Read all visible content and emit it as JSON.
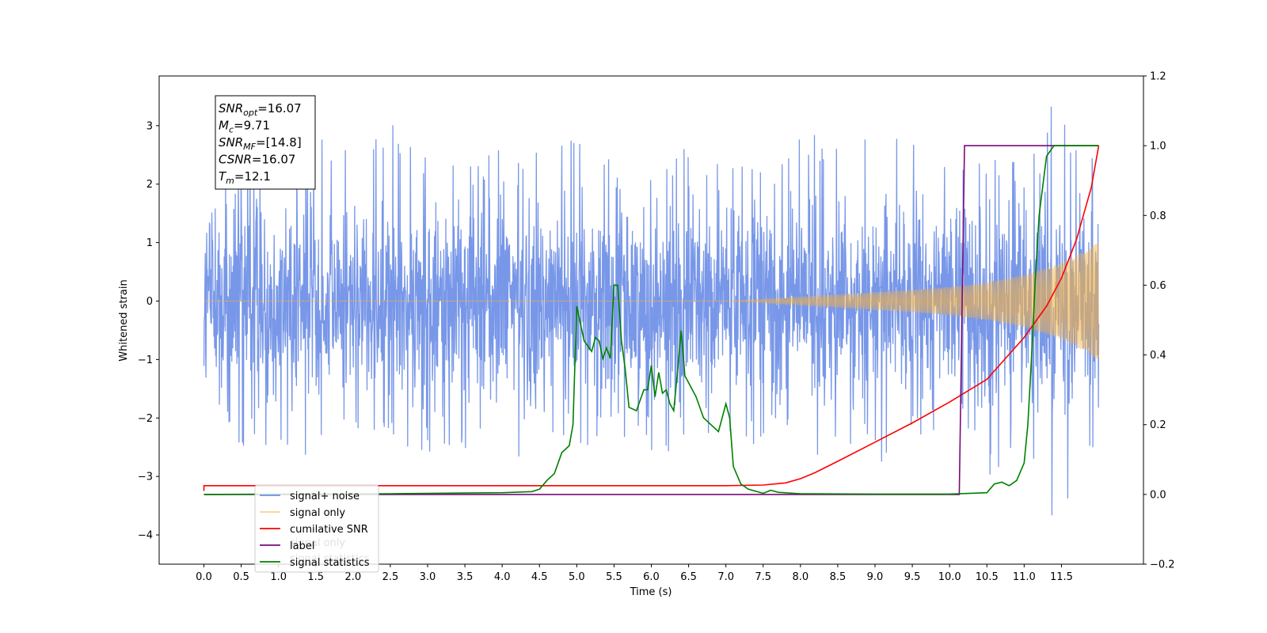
{
  "chart_data": {
    "type": "line",
    "xlabel": "Time (s)",
    "ylabel": "Whitened strain",
    "xlim": [
      -0.6,
      12.6
    ],
    "ylim": [
      -4.5,
      3.85
    ],
    "y2lim": [
      -0.2,
      1.2
    ],
    "x_ticks": [
      0.0,
      0.5,
      1.0,
      1.5,
      2.0,
      2.5,
      3.0,
      3.5,
      4.0,
      4.5,
      5.0,
      5.5,
      6.0,
      6.5,
      7.0,
      7.5,
      8.0,
      8.5,
      9.0,
      9.5,
      10.0,
      10.5,
      11.0,
      11.5
    ],
    "x_tick_labels": [
      "0.0",
      "0.5",
      "1.0",
      "1.5",
      "2.0",
      "2.5",
      "3.0",
      "3.5",
      "4.0",
      "4.5",
      "5.0",
      "5.5",
      "6.0",
      "6.5",
      "7.0",
      "7.5",
      "8.0",
      "8.5",
      "9.0",
      "9.5",
      "10.0",
      "10.5",
      "11.0",
      "11.5"
    ],
    "y_ticks": [
      -4,
      -3,
      -2,
      -1,
      0,
      1,
      2,
      3
    ],
    "y_tick_labels": [
      "−4",
      "−3",
      "−2",
      "−1",
      "0",
      "1",
      "2",
      "3"
    ],
    "y2_ticks": [
      -0.2,
      0.0,
      0.2,
      0.4,
      0.6,
      0.8,
      1.0,
      1.2
    ],
    "y2_tick_labels": [
      "−0.2",
      "0.0",
      "0.2",
      "0.4",
      "0.6",
      "0.8",
      "1.0",
      "1.2"
    ],
    "grid": false,
    "legend_position": "lower-left",
    "duration": 12.0,
    "noise_envelope": {
      "x": [
        0.0,
        0.5,
        1.0,
        1.5,
        2.0,
        2.5,
        3.0,
        3.5,
        4.0,
        4.5,
        5.0,
        5.5,
        6.0,
        6.5,
        7.0,
        7.5,
        8.0,
        8.5,
        9.0,
        9.5,
        10.0,
        10.5,
        11.0,
        11.5,
        12.0
      ],
      "max": [
        1.8,
        2.5,
        2.9,
        2.7,
        3.2,
        3.4,
        2.7,
        2.5,
        2.6,
        2.6,
        2.8,
        2.6,
        2.9,
        2.6,
        2.5,
        2.3,
        3.0,
        2.6,
        2.9,
        2.7,
        3.0,
        2.7,
        2.9,
        3.5,
        2.8
      ],
      "min": [
        -2.2,
        -2.5,
        -2.6,
        -3.0,
        -2.6,
        -2.7,
        -2.6,
        -2.6,
        -3.1,
        -2.4,
        -2.5,
        -2.5,
        -2.6,
        -2.9,
        -2.6,
        -2.5,
        -2.6,
        -2.8,
        -2.9,
        -2.5,
        -3.0,
        -3.3,
        -2.7,
        -4.1,
        -2.4
      ]
    },
    "signal_envelope": {
      "x": [
        0.0,
        7.0,
        7.5,
        8.0,
        8.5,
        9.0,
        9.5,
        10.0,
        10.5,
        11.0,
        11.5,
        11.8,
        12.0
      ],
      "amp": [
        0.0,
        0.0,
        0.03,
        0.07,
        0.11,
        0.15,
        0.19,
        0.24,
        0.32,
        0.45,
        0.65,
        0.85,
        1.05
      ]
    },
    "series": [
      {
        "name": "signal+ noise",
        "color": "#6d8ee6",
        "axis": "left"
      },
      {
        "name": "signal only",
        "color": "#f5b342",
        "axis": "left"
      },
      {
        "name": "cumilative SNR",
        "color": "#ff0000",
        "axis": "right",
        "x": [
          0.0,
          0.001,
          7.0,
          7.5,
          7.8,
          8.0,
          8.2,
          8.5,
          9.0,
          9.5,
          10.0,
          10.5,
          11.0,
          11.3,
          11.5,
          11.7,
          11.9,
          12.0
        ],
        "y": [
          0.01,
          0.025,
          0.025,
          0.027,
          0.033,
          0.045,
          0.063,
          0.095,
          0.15,
          0.205,
          0.265,
          0.33,
          0.45,
          0.54,
          0.62,
          0.73,
          0.88,
          1.0
        ]
      },
      {
        "name": "label",
        "color": "#7a0a7a",
        "axis": "right",
        "x": [
          0.0,
          10.13,
          10.2,
          12.0
        ],
        "y": [
          0.0,
          0.0,
          1.0,
          1.0
        ]
      },
      {
        "name": "signal statistics",
        "color": "#008000",
        "axis": "right",
        "x": [
          0.0,
          1.0,
          2.5,
          3.0,
          3.5,
          4.0,
          4.4,
          4.5,
          4.6,
          4.7,
          4.8,
          4.9,
          4.95,
          5.0,
          5.05,
          5.1,
          5.2,
          5.25,
          5.3,
          5.35,
          5.4,
          5.45,
          5.5,
          5.55,
          5.6,
          5.65,
          5.7,
          5.8,
          5.9,
          5.95,
          6.0,
          6.05,
          6.1,
          6.15,
          6.2,
          6.25,
          6.3,
          6.35,
          6.4,
          6.45,
          6.5,
          6.55,
          6.6,
          6.7,
          6.8,
          6.9,
          7.0,
          7.05,
          7.1,
          7.2,
          7.3,
          7.5,
          7.6,
          7.7,
          8.0,
          9.0,
          10.0,
          10.5,
          10.6,
          10.7,
          10.8,
          10.9,
          11.0,
          11.05,
          11.1,
          11.15,
          11.2,
          11.3,
          11.4,
          12.0
        ],
        "y": [
          0.0,
          0.001,
          0.002,
          0.003,
          0.004,
          0.005,
          0.008,
          0.015,
          0.04,
          0.06,
          0.12,
          0.14,
          0.2,
          0.54,
          0.49,
          0.44,
          0.41,
          0.45,
          0.44,
          0.39,
          0.42,
          0.39,
          0.6,
          0.6,
          0.44,
          0.36,
          0.25,
          0.24,
          0.3,
          0.3,
          0.37,
          0.28,
          0.35,
          0.29,
          0.3,
          0.26,
          0.24,
          0.35,
          0.47,
          0.34,
          0.32,
          0.3,
          0.28,
          0.22,
          0.2,
          0.18,
          0.26,
          0.22,
          0.08,
          0.03,
          0.015,
          0.003,
          0.012,
          0.006,
          0.002,
          0.001,
          0.001,
          0.005,
          0.03,
          0.035,
          0.025,
          0.04,
          0.09,
          0.2,
          0.4,
          0.62,
          0.8,
          0.97,
          1.0,
          1.0
        ]
      }
    ],
    "annotation": {
      "lines": [
        {
          "sym": "SNR",
          "sub": "opt",
          "val": "=16.07"
        },
        {
          "sym": "M",
          "sub": "c",
          "val": "=9.71"
        },
        {
          "sym": "SNR",
          "sub": "MF",
          "val": "=[14.8]"
        },
        {
          "sym": "CSNR",
          "sub": "",
          "val": "=16.07"
        },
        {
          "sym": "T",
          "sub": "m",
          "val": "=12.1"
        }
      ]
    },
    "legend_ghost_text": [
      "signal only",
      "signal statistics"
    ]
  }
}
